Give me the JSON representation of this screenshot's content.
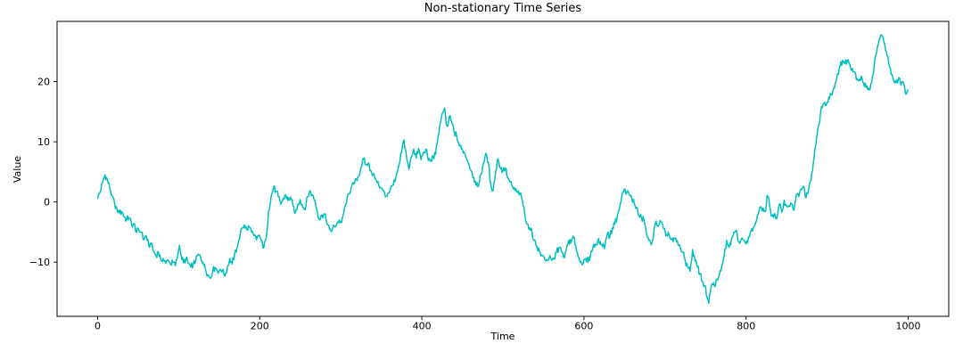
{
  "figure": {
    "title": "Non-stationary Time Series",
    "xlabel": "Time",
    "ylabel": "Value"
  },
  "chart_data": {
    "type": "line",
    "title": "Non-stationary Time Series",
    "xlabel": "Time",
    "ylabel": "Value",
    "xlim": [
      -50,
      1050
    ],
    "ylim": [
      -19,
      30
    ],
    "x_ticks": [
      0,
      200,
      400,
      600,
      800,
      1000
    ],
    "y_ticks": [
      -10,
      0,
      10,
      20
    ],
    "grid": false,
    "legend": false,
    "line_color": "#00bfbf",
    "background_color": "#ffffff",
    "n_points": 1001,
    "x_start": 0,
    "x_end": 1000,
    "y_min_observed": -16.8,
    "y_max_observed": 27.8,
    "keypoints": [
      [
        0,
        0.6
      ],
      [
        3,
        1.6
      ],
      [
        6,
        3.2
      ],
      [
        9,
        4.5
      ],
      [
        12,
        3.7
      ],
      [
        15,
        2.3
      ],
      [
        18,
        1.0
      ],
      [
        21,
        -0.3
      ],
      [
        24,
        -1.2
      ],
      [
        27,
        -1.9
      ],
      [
        30,
        -1.6
      ],
      [
        33,
        -2.5
      ],
      [
        36,
        -2.9
      ],
      [
        39,
        -2.6
      ],
      [
        42,
        -3.8
      ],
      [
        45,
        -3.6
      ],
      [
        48,
        -5.0
      ],
      [
        51,
        -4.7
      ],
      [
        54,
        -5.1
      ],
      [
        57,
        -6.3
      ],
      [
        60,
        -5.6
      ],
      [
        63,
        -7.2
      ],
      [
        66,
        -7.0
      ],
      [
        69,
        -8.2
      ],
      [
        72,
        -8.9
      ],
      [
        75,
        -8.3
      ],
      [
        78,
        -9.6
      ],
      [
        81,
        -9.4
      ],
      [
        84,
        -10.2
      ],
      [
        87,
        -9.6
      ],
      [
        90,
        -10.4
      ],
      [
        93,
        -10.0
      ],
      [
        96,
        -10.6
      ],
      [
        99,
        -8.8
      ],
      [
        101,
        -7.2
      ],
      [
        103,
        -8.8
      ],
      [
        106,
        -10.1
      ],
      [
        109,
        -9.4
      ],
      [
        112,
        -10.2
      ],
      [
        115,
        -10.8
      ],
      [
        118,
        -10.3
      ],
      [
        121,
        -9.9
      ],
      [
        124,
        -8.7
      ],
      [
        127,
        -9.2
      ],
      [
        130,
        -10.0
      ],
      [
        133,
        -11.2
      ],
      [
        136,
        -12.1
      ],
      [
        139,
        -12.7
      ],
      [
        142,
        -11.4
      ],
      [
        145,
        -10.9
      ],
      [
        148,
        -11.5
      ],
      [
        151,
        -11.2
      ],
      [
        154,
        -11.4
      ],
      [
        157,
        -12.3
      ],
      [
        160,
        -10.9
      ],
      [
        163,
        -9.4
      ],
      [
        166,
        -10.3
      ],
      [
        169,
        -8.6
      ],
      [
        172,
        -7.6
      ],
      [
        175,
        -6.2
      ],
      [
        178,
        -4.4
      ],
      [
        181,
        -3.8
      ],
      [
        184,
        -4.6
      ],
      [
        187,
        -4.1
      ],
      [
        190,
        -5.0
      ],
      [
        193,
        -5.6
      ],
      [
        196,
        -6.3
      ],
      [
        199,
        -5.5
      ],
      [
        202,
        -6.4
      ],
      [
        205,
        -7.6
      ],
      [
        208,
        -6.0
      ],
      [
        211,
        -1.5
      ],
      [
        214,
        0.8
      ],
      [
        217,
        2.4
      ],
      [
        220,
        1.8
      ],
      [
        223,
        0.9
      ],
      [
        226,
        -0.4
      ],
      [
        229,
        0.6
      ],
      [
        232,
        1.2
      ],
      [
        235,
        0.2
      ],
      [
        238,
        0.8
      ],
      [
        241,
        -0.6
      ],
      [
        244,
        -1.8
      ],
      [
        247,
        -0.4
      ],
      [
        250,
        0.4
      ],
      [
        253,
        -0.8
      ],
      [
        256,
        -1.3
      ],
      [
        259,
        0.9
      ],
      [
        262,
        1.9
      ],
      [
        265,
        1.2
      ],
      [
        268,
        0.3
      ],
      [
        271,
        -1.6
      ],
      [
        274,
        -3.0
      ],
      [
        277,
        -2.2
      ],
      [
        280,
        -2.0
      ],
      [
        283,
        -3.6
      ],
      [
        286,
        -4.5
      ],
      [
        289,
        -4.8
      ],
      [
        292,
        -4.0
      ],
      [
        295,
        -3.6
      ],
      [
        298,
        -3.0
      ],
      [
        301,
        -3.4
      ],
      [
        304,
        -1.6
      ],
      [
        307,
        -0.2
      ],
      [
        310,
        1.4
      ],
      [
        313,
        2.4
      ],
      [
        316,
        3.0
      ],
      [
        319,
        3.8
      ],
      [
        322,
        4.3
      ],
      [
        325,
        5.8
      ],
      [
        328,
        7.1
      ],
      [
        331,
        6.2
      ],
      [
        334,
        6.5
      ],
      [
        337,
        5.2
      ],
      [
        340,
        4.6
      ],
      [
        343,
        3.9
      ],
      [
        346,
        3.4
      ],
      [
        349,
        2.4
      ],
      [
        352,
        1.9
      ],
      [
        355,
        0.9
      ],
      [
        358,
        1.4
      ],
      [
        361,
        2.1
      ],
      [
        364,
        2.8
      ],
      [
        367,
        3.4
      ],
      [
        370,
        5.0
      ],
      [
        373,
        6.8
      ],
      [
        376,
        9.2
      ],
      [
        378,
        10.3
      ],
      [
        381,
        7.6
      ],
      [
        384,
        5.4
      ],
      [
        387,
        7.4
      ],
      [
        390,
        8.8
      ],
      [
        393,
        7.3
      ],
      [
        396,
        8.9
      ],
      [
        399,
        7.0
      ],
      [
        402,
        8.3
      ],
      [
        405,
        8.8
      ],
      [
        408,
        6.9
      ],
      [
        411,
        7.0
      ],
      [
        414,
        7.4
      ],
      [
        417,
        7.9
      ],
      [
        420,
        10.8
      ],
      [
        423,
        13.2
      ],
      [
        426,
        14.9
      ],
      [
        428,
        15.6
      ],
      [
        430,
        13.0
      ],
      [
        432,
        12.6
      ],
      [
        434,
        14.2
      ],
      [
        437,
        13.1
      ],
      [
        440,
        11.6
      ],
      [
        443,
        11.0
      ],
      [
        446,
        9.5
      ],
      [
        449,
        8.8
      ],
      [
        452,
        8.3
      ],
      [
        455,
        7.3
      ],
      [
        458,
        6.4
      ],
      [
        461,
        5.1
      ],
      [
        464,
        4.1
      ],
      [
        467,
        2.8
      ],
      [
        470,
        2.7
      ],
      [
        473,
        4.6
      ],
      [
        476,
        6.4
      ],
      [
        479,
        8.1
      ],
      [
        482,
        6.6
      ],
      [
        485,
        2.9
      ],
      [
        488,
        1.9
      ],
      [
        491,
        5.0
      ],
      [
        494,
        7.2
      ],
      [
        497,
        5.6
      ],
      [
        500,
        5.2
      ],
      [
        503,
        5.6
      ],
      [
        506,
        4.0
      ],
      [
        509,
        3.3
      ],
      [
        512,
        2.5
      ],
      [
        515,
        1.9
      ],
      [
        518,
        1.6
      ],
      [
        521,
        1.5
      ],
      [
        524,
        0.2
      ],
      [
        527,
        -2.0
      ],
      [
        530,
        -3.7
      ],
      [
        533,
        -4.3
      ],
      [
        536,
        -5.2
      ],
      [
        539,
        -6.3
      ],
      [
        542,
        -7.4
      ],
      [
        545,
        -8.2
      ],
      [
        548,
        -8.8
      ],
      [
        551,
        -9.2
      ],
      [
        554,
        -9.6
      ],
      [
        557,
        -9.3
      ],
      [
        560,
        -9.7
      ],
      [
        563,
        -9.5
      ],
      [
        566,
        -8.4
      ],
      [
        569,
        -7.6
      ],
      [
        572,
        -8.0
      ],
      [
        575,
        -9.2
      ],
      [
        578,
        -8.1
      ],
      [
        581,
        -6.4
      ],
      [
        584,
        -6.8
      ],
      [
        587,
        -5.7
      ],
      [
        590,
        -7.3
      ],
      [
        593,
        -9.2
      ],
      [
        596,
        -9.9
      ],
      [
        599,
        -10.2
      ],
      [
        602,
        -9.4
      ],
      [
        605,
        -10.0
      ],
      [
        608,
        -8.8
      ],
      [
        611,
        -7.6
      ],
      [
        614,
        -7.0
      ],
      [
        617,
        -6.4
      ],
      [
        620,
        -6.6
      ],
      [
        623,
        -7.4
      ],
      [
        626,
        -7.2
      ],
      [
        629,
        -5.2
      ],
      [
        632,
        -5.8
      ],
      [
        635,
        -4.3
      ],
      [
        638,
        -3.7
      ],
      [
        641,
        -2.4
      ],
      [
        644,
        -0.9
      ],
      [
        647,
        1.2
      ],
      [
        650,
        2.2
      ],
      [
        653,
        1.6
      ],
      [
        656,
        1.2
      ],
      [
        659,
        0.6
      ],
      [
        662,
        -0.2
      ],
      [
        665,
        -0.9
      ],
      [
        668,
        -2.3
      ],
      [
        671,
        -2.7
      ],
      [
        674,
        -3.0
      ],
      [
        677,
        -5.2
      ],
      [
        680,
        -6.4
      ],
      [
        683,
        -7.1
      ],
      [
        686,
        -5.2
      ],
      [
        689,
        -3.2
      ],
      [
        692,
        -4.0
      ],
      [
        695,
        -3.3
      ],
      [
        698,
        -4.4
      ],
      [
        701,
        -5.6
      ],
      [
        704,
        -5.0
      ],
      [
        707,
        -6.2
      ],
      [
        710,
        -6.6
      ],
      [
        713,
        -6.0
      ],
      [
        716,
        -7.0
      ],
      [
        719,
        -7.7
      ],
      [
        722,
        -8.4
      ],
      [
        725,
        -9.8
      ],
      [
        728,
        -10.8
      ],
      [
        731,
        -11.5
      ],
      [
        734,
        -7.9
      ],
      [
        737,
        -9.8
      ],
      [
        740,
        -10.8
      ],
      [
        743,
        -11.9
      ],
      [
        746,
        -13.2
      ],
      [
        749,
        -13.9
      ],
      [
        752,
        -15.8
      ],
      [
        754,
        -16.8
      ],
      [
        756,
        -14.8
      ],
      [
        758,
        -13.6
      ],
      [
        761,
        -14.0
      ],
      [
        764,
        -12.8
      ],
      [
        767,
        -12.2
      ],
      [
        770,
        -10.7
      ],
      [
        773,
        -8.8
      ],
      [
        776,
        -6.4
      ],
      [
        779,
        -7.5
      ],
      [
        782,
        -6.2
      ],
      [
        785,
        -5.0
      ],
      [
        788,
        -4.7
      ],
      [
        791,
        -6.6
      ],
      [
        794,
        -6.2
      ],
      [
        797,
        -6.3
      ],
      [
        800,
        -7.0
      ],
      [
        803,
        -5.8
      ],
      [
        806,
        -4.8
      ],
      [
        809,
        -4.2
      ],
      [
        812,
        -3.4
      ],
      [
        815,
        -2.0
      ],
      [
        818,
        -0.8
      ],
      [
        821,
        -1.0
      ],
      [
        824,
        -1.6
      ],
      [
        826,
        1.1
      ],
      [
        829,
        -0.5
      ],
      [
        832,
        -2.4
      ],
      [
        835,
        -1.9
      ],
      [
        838,
        -2.7
      ],
      [
        841,
        -0.4
      ],
      [
        844,
        -1.7
      ],
      [
        847,
        0.3
      ],
      [
        850,
        -0.6
      ],
      [
        853,
        -0.6
      ],
      [
        856,
        -0.3
      ],
      [
        859,
        -1.4
      ],
      [
        862,
        1.2
      ],
      [
        865,
        0.9
      ],
      [
        868,
        2.2
      ],
      [
        871,
        2.6
      ],
      [
        874,
        0.7
      ],
      [
        877,
        1.8
      ],
      [
        880,
        3.5
      ],
      [
        883,
        6.5
      ],
      [
        886,
        9.5
      ],
      [
        889,
        12.5
      ],
      [
        892,
        15.0
      ],
      [
        895,
        16.2
      ],
      [
        898,
        16.0
      ],
      [
        901,
        16.6
      ],
      [
        904,
        18.0
      ],
      [
        907,
        18.4
      ],
      [
        910,
        19.8
      ],
      [
        913,
        21.3
      ],
      [
        916,
        22.6
      ],
      [
        919,
        23.5
      ],
      [
        922,
        23.0
      ],
      [
        925,
        23.6
      ],
      [
        928,
        22.8
      ],
      [
        931,
        22.2
      ],
      [
        934,
        21.6
      ],
      [
        937,
        20.5
      ],
      [
        940,
        20.4
      ],
      [
        943,
        20.6
      ],
      [
        946,
        19.2
      ],
      [
        949,
        19.3
      ],
      [
        952,
        18.6
      ],
      [
        955,
        19.8
      ],
      [
        958,
        22.6
      ],
      [
        961,
        24.8
      ],
      [
        964,
        26.8
      ],
      [
        967,
        27.8
      ],
      [
        970,
        26.6
      ],
      [
        973,
        25.0
      ],
      [
        976,
        23.0
      ],
      [
        979,
        21.2
      ],
      [
        982,
        20.1
      ],
      [
        985,
        19.8
      ],
      [
        988,
        20.6
      ],
      [
        991,
        19.4
      ],
      [
        994,
        19.9
      ],
      [
        997,
        17.9
      ],
      [
        1000,
        18.6
      ]
    ]
  }
}
